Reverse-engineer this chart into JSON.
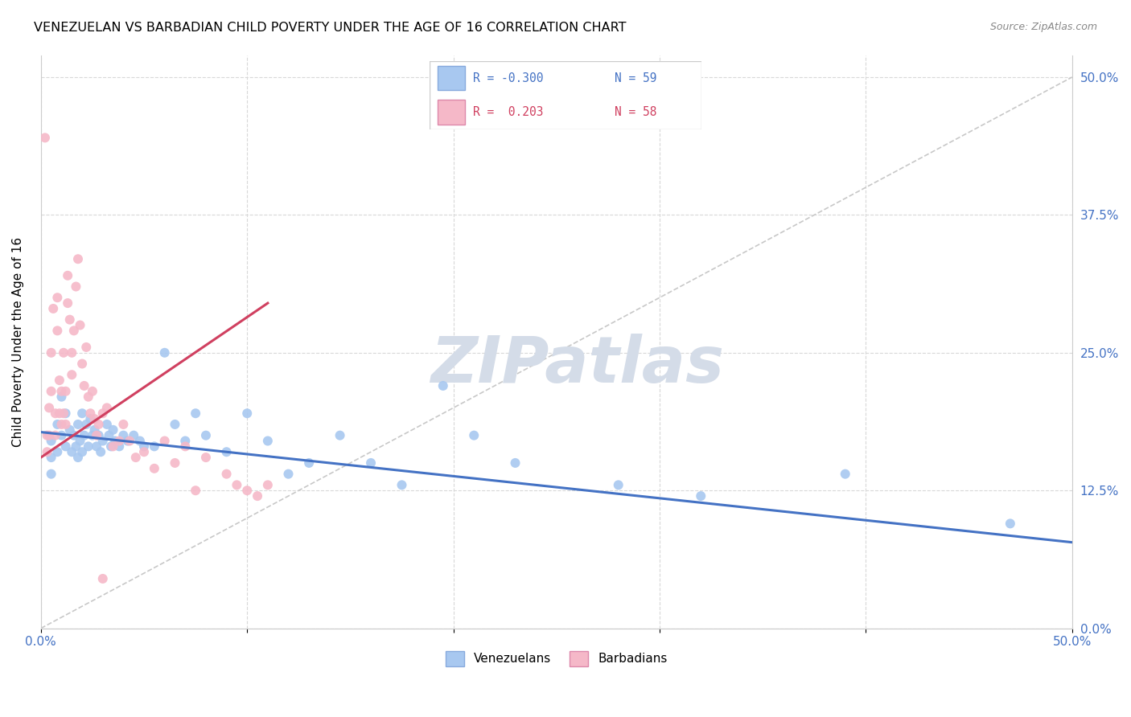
{
  "title": "VENEZUELAN VS BARBADIAN CHILD POVERTY UNDER THE AGE OF 16 CORRELATION CHART",
  "source": "Source: ZipAtlas.com",
  "ylabel": "Child Poverty Under the Age of 16",
  "xlim": [
    0.0,
    0.5
  ],
  "ylim": [
    0.0,
    0.52
  ],
  "xticks": [
    0.0,
    0.1,
    0.2,
    0.3,
    0.4,
    0.5
  ],
  "yticks": [
    0.0,
    0.125,
    0.25,
    0.375,
    0.5
  ],
  "ytick_labels_right": [
    "0.0%",
    "12.5%",
    "25.0%",
    "37.5%",
    "50.0%"
  ],
  "blue_color": "#a8c8f0",
  "pink_color": "#f5b8c8",
  "blue_line_color": "#4472c4",
  "pink_line_color": "#d04060",
  "dashed_line_color": "#c8c8c8",
  "watermark": "ZIPatlas",
  "watermark_color": "#d4dce8",
  "venezuelan_x": [
    0.005,
    0.005,
    0.005,
    0.008,
    0.008,
    0.01,
    0.01,
    0.012,
    0.012,
    0.014,
    0.015,
    0.016,
    0.017,
    0.018,
    0.018,
    0.019,
    0.02,
    0.02,
    0.021,
    0.022,
    0.023,
    0.024,
    0.025,
    0.026,
    0.027,
    0.028,
    0.029,
    0.03,
    0.032,
    0.033,
    0.034,
    0.035,
    0.036,
    0.038,
    0.04,
    0.042,
    0.045,
    0.048,
    0.05,
    0.055,
    0.06,
    0.065,
    0.07,
    0.075,
    0.08,
    0.09,
    0.1,
    0.11,
    0.12,
    0.13,
    0.145,
    0.16,
    0.175,
    0.195,
    0.21,
    0.23,
    0.28,
    0.32,
    0.39,
    0.47
  ],
  "venezuelan_y": [
    0.17,
    0.155,
    0.14,
    0.185,
    0.16,
    0.21,
    0.175,
    0.195,
    0.165,
    0.18,
    0.16,
    0.175,
    0.165,
    0.185,
    0.155,
    0.17,
    0.195,
    0.16,
    0.175,
    0.185,
    0.165,
    0.19,
    0.175,
    0.18,
    0.165,
    0.175,
    0.16,
    0.17,
    0.185,
    0.175,
    0.165,
    0.18,
    0.17,
    0.165,
    0.175,
    0.17,
    0.175,
    0.17,
    0.165,
    0.165,
    0.25,
    0.185,
    0.17,
    0.195,
    0.175,
    0.16,
    0.195,
    0.17,
    0.14,
    0.15,
    0.175,
    0.15,
    0.13,
    0.22,
    0.175,
    0.15,
    0.13,
    0.12,
    0.14,
    0.095
  ],
  "barbadian_x": [
    0.002,
    0.003,
    0.003,
    0.004,
    0.004,
    0.005,
    0.005,
    0.006,
    0.007,
    0.007,
    0.008,
    0.008,
    0.009,
    0.009,
    0.01,
    0.01,
    0.011,
    0.011,
    0.012,
    0.012,
    0.013,
    0.013,
    0.014,
    0.015,
    0.015,
    0.016,
    0.017,
    0.018,
    0.019,
    0.02,
    0.021,
    0.022,
    0.023,
    0.024,
    0.025,
    0.026,
    0.027,
    0.028,
    0.03,
    0.032,
    0.035,
    0.038,
    0.04,
    0.043,
    0.046,
    0.05,
    0.055,
    0.06,
    0.065,
    0.07,
    0.075,
    0.08,
    0.09,
    0.095,
    0.1,
    0.105,
    0.11,
    0.03
  ],
  "barbadian_y": [
    0.445,
    0.175,
    0.16,
    0.2,
    0.175,
    0.25,
    0.215,
    0.29,
    0.175,
    0.195,
    0.3,
    0.27,
    0.225,
    0.195,
    0.215,
    0.185,
    0.25,
    0.195,
    0.215,
    0.185,
    0.32,
    0.295,
    0.28,
    0.25,
    0.23,
    0.27,
    0.31,
    0.335,
    0.275,
    0.24,
    0.22,
    0.255,
    0.21,
    0.195,
    0.215,
    0.19,
    0.175,
    0.185,
    0.195,
    0.2,
    0.165,
    0.17,
    0.185,
    0.17,
    0.155,
    0.16,
    0.145,
    0.17,
    0.15,
    0.165,
    0.125,
    0.155,
    0.14,
    0.13,
    0.125,
    0.12,
    0.13,
    0.045
  ],
  "blue_trend_x0": 0.0,
  "blue_trend_x1": 0.5,
  "blue_trend_y0": 0.178,
  "blue_trend_y1": 0.078,
  "pink_trend_x0": 0.0,
  "pink_trend_x1": 0.11,
  "pink_trend_y0": 0.155,
  "pink_trend_y1": 0.295
}
